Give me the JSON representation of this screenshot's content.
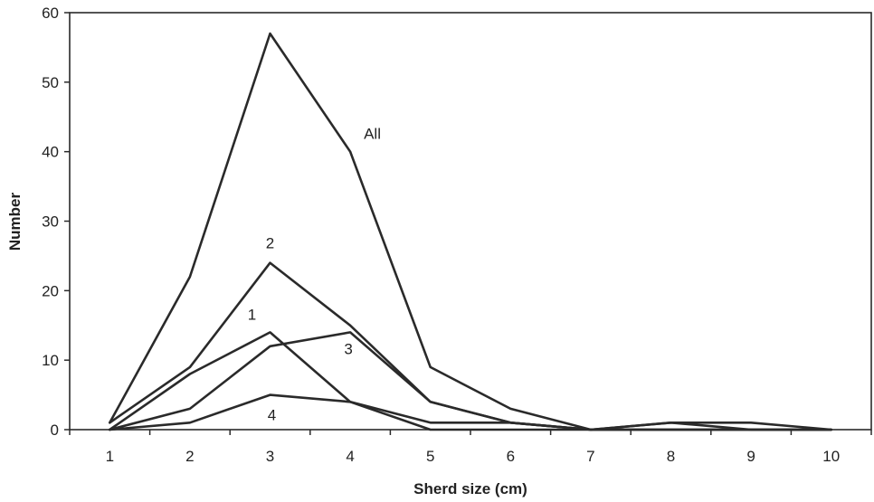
{
  "chart_data": {
    "type": "line",
    "title": "",
    "xlabel": "Sherd size (cm)",
    "ylabel": "Number",
    "x": [
      1,
      2,
      3,
      4,
      5,
      6,
      7,
      8,
      9,
      10
    ],
    "xlim": [
      0.5,
      10.5
    ],
    "ylim": [
      0,
      60
    ],
    "yticks": [
      0,
      10,
      20,
      30,
      40,
      50,
      60
    ],
    "grid": false,
    "legend": "none",
    "line_color": "#2a2a2a",
    "series": [
      {
        "name": "All",
        "values": [
          1,
          22,
          57,
          40,
          9,
          3,
          0,
          1,
          1,
          0
        ]
      },
      {
        "name": "2",
        "values": [
          1,
          9,
          24,
          15,
          4,
          1,
          0,
          1,
          0,
          0
        ]
      },
      {
        "name": "1",
        "values": [
          0,
          8,
          14,
          4,
          0,
          0,
          0,
          0,
          0,
          0
        ]
      },
      {
        "name": "3",
        "values": [
          0,
          3,
          12,
          14,
          4,
          1,
          0,
          0,
          0,
          0
        ]
      },
      {
        "name": "4",
        "values": [
          0,
          1,
          5,
          4,
          1,
          1,
          0,
          0,
          0,
          0
        ]
      }
    ]
  }
}
